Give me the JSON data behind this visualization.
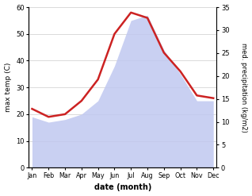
{
  "months": [
    "Jan",
    "Feb",
    "Mar",
    "Apr",
    "May",
    "Jun",
    "Jul",
    "Aug",
    "Sep",
    "Oct",
    "Nov",
    "Dec"
  ],
  "max_temp": [
    22,
    19,
    20,
    25,
    33,
    50,
    58,
    56,
    43,
    36,
    27,
    26
  ],
  "precip_temp_scale": [
    19,
    17,
    18,
    20,
    25,
    38,
    55,
    57,
    44,
    35,
    25,
    25
  ],
  "temp_color": "#cc2222",
  "precip_fill_color": "#c0c8f0",
  "temp_ylim": [
    0,
    60
  ],
  "precip_ylim": [
    0,
    35
  ],
  "temp_yticks": [
    0,
    10,
    20,
    30,
    40,
    50,
    60
  ],
  "precip_yticks": [
    0,
    5,
    10,
    15,
    20,
    25,
    30,
    35
  ],
  "xlabel": "date (month)",
  "ylabel_left": "max temp (C)",
  "ylabel_right": "med. precipitation (kg/m2)",
  "background_color": "#ffffff",
  "grid_color": "#cccccc"
}
